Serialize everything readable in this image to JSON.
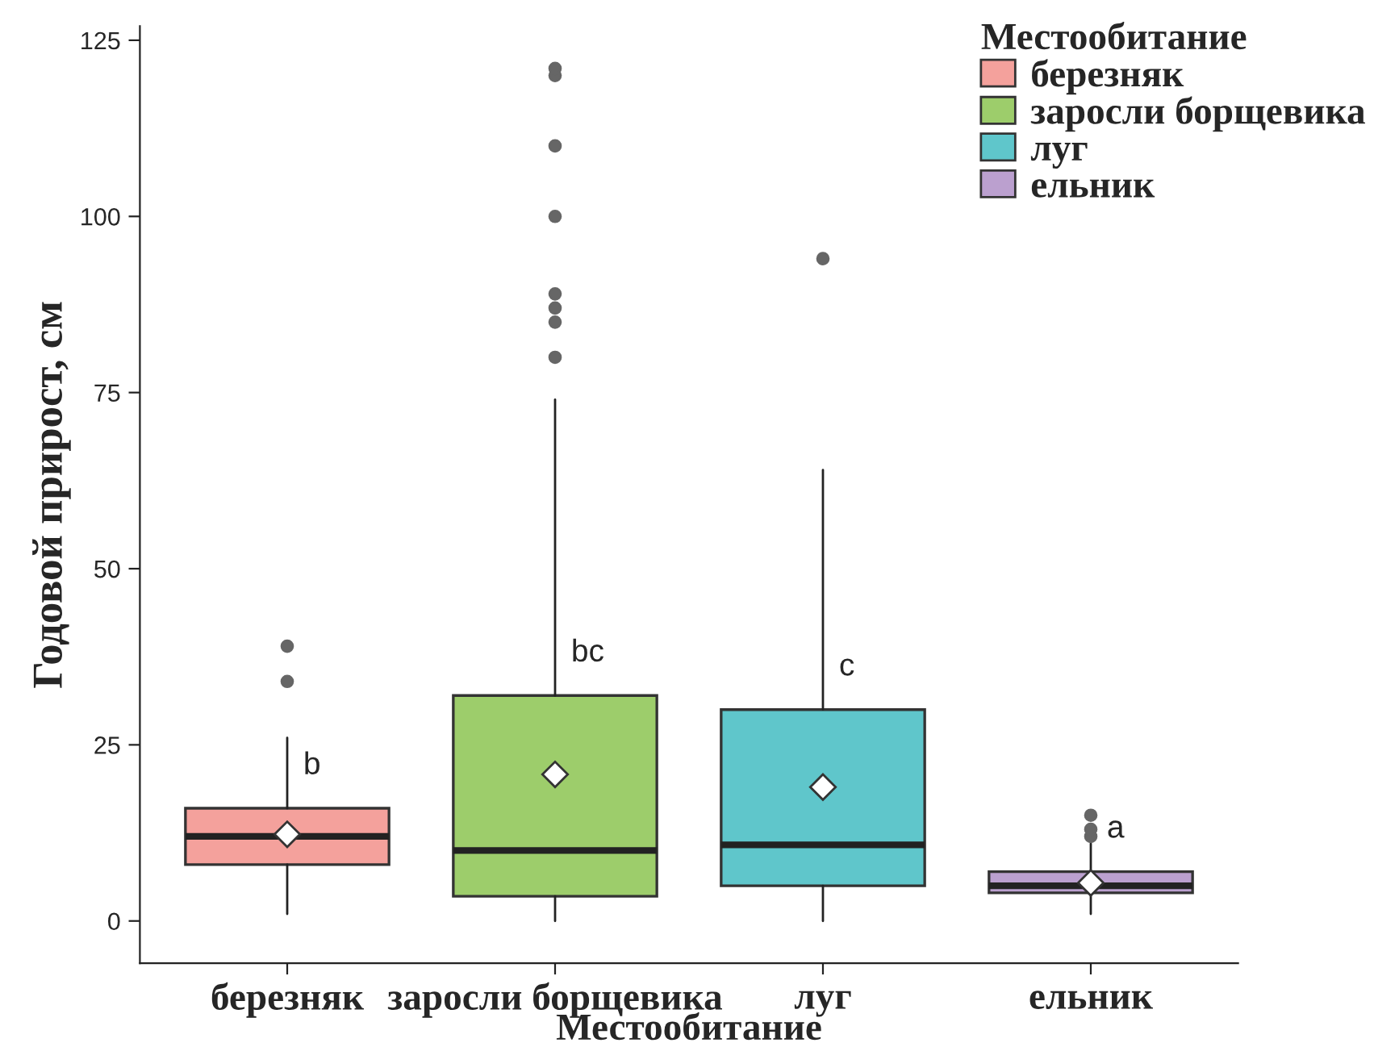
{
  "chart_data": {
    "type": "box",
    "xlabel": "Местообитание",
    "ylabel": "Годовой прирост, см",
    "legend_title": "Местообитание",
    "categories": [
      "березняк",
      "заросли борщевика",
      "луг",
      "ельник"
    ],
    "series": [
      {
        "name": "березняк",
        "color": "#f4a19c",
        "boxes": [
          {
            "low": 1,
            "q1": 8,
            "median": 12,
            "q3": 16,
            "high": 26,
            "mean": 12.3,
            "outliers": [
              34,
              39
            ]
          },
          null,
          null,
          null
        ]
      },
      {
        "name": "заросли борщевика",
        "color": "#9dcd6b",
        "boxes": [
          null,
          {
            "low": 0,
            "q1": 3.5,
            "median": 10,
            "q3": 32,
            "high": 74,
            "mean": 20.8,
            "outliers": [
              80,
              85,
              87,
              89,
              100,
              110,
              120,
              121
            ]
          },
          null,
          null
        ]
      },
      {
        "name": "луг",
        "color": "#5fc6cb",
        "boxes": [
          null,
          null,
          {
            "low": 0,
            "q1": 5,
            "median": 10.8,
            "q3": 30,
            "high": 64,
            "mean": 19,
            "outliers": [
              94
            ]
          },
          null
        ]
      },
      {
        "name": "ельник",
        "color": "#bba0cf",
        "boxes": [
          null,
          null,
          null,
          {
            "low": 1,
            "q1": 4,
            "median": 5,
            "q3": 7,
            "high": 11,
            "mean": 5.4,
            "outliers": [
              12,
              13,
              15
            ]
          }
        ]
      }
    ],
    "ylim": [
      -6,
      127
    ],
    "yticks": [
      0,
      25,
      50,
      75,
      100,
      125
    ],
    "grid": false,
    "legend": "top right",
    "annotations": [
      "b",
      "bc",
      "c",
      "a"
    ]
  }
}
